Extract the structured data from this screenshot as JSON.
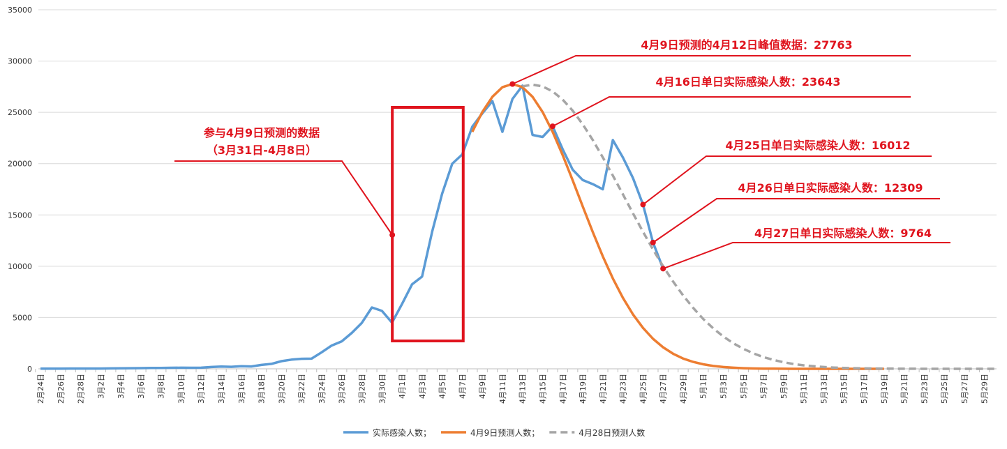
{
  "chart_data": {
    "type": "line",
    "title": "",
    "xlabel": "",
    "ylabel": "",
    "ylim": [
      0,
      35000
    ],
    "yticks": [
      0,
      5000,
      10000,
      15000,
      20000,
      25000,
      30000,
      35000
    ],
    "grid": true,
    "legend_position": "bottom",
    "x_start": "2月24日",
    "x_tick_labels": [
      "2月24日",
      "2月26日",
      "2月28日",
      "3月2日",
      "3月4日",
      "3月6日",
      "3月8日",
      "3月10日",
      "3月12日",
      "3月14日",
      "3月16日",
      "3月18日",
      "3月20日",
      "3月22日",
      "3月24日",
      "3月26日",
      "3月28日",
      "3月30日",
      "4月1日",
      "4月3日",
      "4月5日",
      "4月7日",
      "4月9日",
      "4月11日",
      "4月13日",
      "4月15日",
      "4月17日",
      "4月19日",
      "4月21日",
      "4月23日",
      "4月25日",
      "4月27日",
      "4月29日",
      "5月1日",
      "5月3日",
      "5月5日",
      "5月7日",
      "5月9日",
      "5月11日",
      "5月13日",
      "5月15日",
      "5月17日",
      "5月19日",
      "5月21日",
      "5月23日",
      "5月25日",
      "5月27日",
      "5月29日"
    ],
    "series": [
      {
        "name": "实际感染人数；",
        "color": "#5b9bd5",
        "style": "solid",
        "start": "2月24日",
        "values": [
          20,
          20,
          20,
          25,
          25,
          30,
          30,
          40,
          50,
          60,
          70,
          80,
          90,
          100,
          110,
          100,
          110,
          180,
          220,
          200,
          260,
          230,
          380,
          480,
          750,
          900,
          980,
          990,
          1610,
          2270,
          2680,
          3500,
          4480,
          5980,
          5650,
          4500,
          6310,
          8230,
          8990,
          13350,
          17080,
          19990,
          20900,
          23600,
          24900,
          26100,
          23100,
          26300,
          27600,
          22800,
          22600,
          23643,
          21400,
          19400,
          18400,
          18000,
          17500,
          22300,
          20600,
          18600,
          16012,
          12309,
          9764
        ]
      },
      {
        "name": "4月9日预测人数；",
        "color": "#ed7d31",
        "style": "solid",
        "start": "4月8日",
        "values": [
          23100,
          25040,
          26520,
          27450,
          27763,
          27450,
          26520,
          25040,
          23100,
          20830,
          18360,
          15820,
          13320,
          10960,
          8810,
          6920,
          5310,
          3990,
          2920,
          2100,
          1470,
          1000,
          670,
          440,
          280,
          175,
          108,
          64,
          37,
          20,
          11,
          6,
          3,
          2,
          1,
          1,
          0,
          0,
          0,
          0,
          0,
          0
        ]
      },
      {
        "name": "4月28日预测人数",
        "color": "#a5a5a5",
        "style": "dashed",
        "start": "4月13日",
        "values": [
          27530,
          27700,
          27530,
          27040,
          26240,
          25160,
          23830,
          22300,
          20610,
          18840,
          17010,
          15160,
          13360,
          11630,
          10000,
          8500,
          7140,
          5930,
          4860,
          3940,
          3150,
          2490,
          1950,
          1500,
          1140,
          860,
          640,
          470,
          340,
          250,
          175,
          120,
          85,
          58,
          40,
          27,
          18,
          12,
          8,
          5,
          3,
          2,
          1,
          1,
          0,
          0,
          0,
          0
        ]
      }
    ],
    "annotations": [
      {
        "text": "4月9日预测的4月12日峰值数据：27763",
        "date": "4月12日",
        "value": 27763
      },
      {
        "text": "4月16日单日实际感染人数：23643",
        "date": "4月16日",
        "value": 23643
      },
      {
        "text": "4月25日单日实际感染人数：16012",
        "date": "4月25日",
        "value": 16012
      },
      {
        "text": "4月26日单日实际感染人数：12309",
        "date": "4月26日",
        "value": 12309
      },
      {
        "text": "4月27日单日实际感染人数：9764",
        "date": "4月27日",
        "value": 9764
      }
    ],
    "box_annotation": {
      "line1": "参与4月9日预测的数据",
      "line2": "（3月31日-4月8日）",
      "from": "3月31日",
      "to": "4月8日"
    },
    "annotation_color": "#e0141e"
  }
}
